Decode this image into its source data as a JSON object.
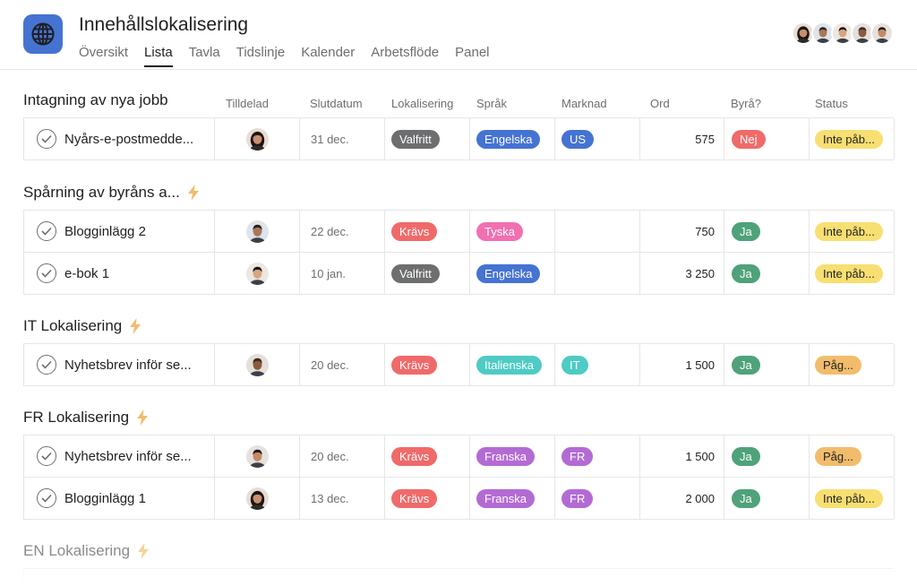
{
  "project": {
    "title": "Innehållslokalisering",
    "icon": "globe-icon",
    "icon_bg": "#4573d2"
  },
  "tabs": [
    {
      "label": "Översikt"
    },
    {
      "label": "Lista",
      "active": true
    },
    {
      "label": "Tavla"
    },
    {
      "label": "Tidslinje"
    },
    {
      "label": "Kalender"
    },
    {
      "label": "Arbetsflöde"
    },
    {
      "label": "Panel"
    }
  ],
  "columns": {
    "assignee": "Tilldelad",
    "due": "Slutdatum",
    "localization": "Lokalisering",
    "language": "Språk",
    "market": "Marknad",
    "words": "Ord",
    "agency": "Byrå?",
    "status": "Status"
  },
  "sections": [
    {
      "title": "Intagning av nya jobb",
      "rule_icon": false,
      "rows": [
        {
          "name": "Nyårs-e-postmedde...",
          "assignee": "person-avatar",
          "due": "31 dec.",
          "localization": "Valfritt",
          "language": "Engelska",
          "market": "US",
          "words": "575",
          "agency": "Nej",
          "status": "Inte påb..."
        }
      ]
    },
    {
      "title": "Spårning av byråns a...",
      "rule_icon": true,
      "rows": [
        {
          "name": "Blogginlägg 2",
          "assignee": "person-avatar",
          "due": "22 dec.",
          "localization": "Krävs",
          "language": "Tyska",
          "market": "",
          "words": "750",
          "agency": "Ja",
          "status": "Inte påb..."
        },
        {
          "name": "e-bok 1",
          "assignee": "person-avatar",
          "due": "10 jan.",
          "localization": "Valfritt",
          "language": "Engelska",
          "market": "",
          "words": "3 250",
          "agency": "Ja",
          "status": "Inte påb..."
        }
      ]
    },
    {
      "title": "IT Lokalisering",
      "rule_icon": true,
      "rows": [
        {
          "name": "Nyhetsbrev inför se...",
          "assignee": "person-avatar",
          "due": "20 dec.",
          "localization": "Krävs",
          "language": "Italienska",
          "market": "IT",
          "words": "1 500",
          "agency": "Ja",
          "status": "Påg..."
        }
      ]
    },
    {
      "title": "FR Lokalisering",
      "rule_icon": true,
      "rows": [
        {
          "name": "Nyhetsbrev inför se...",
          "assignee": "person-avatar",
          "due": "20 dec.",
          "localization": "Krävs",
          "language": "Franska",
          "market": "FR",
          "words": "1 500",
          "agency": "Ja",
          "status": "Påg..."
        },
        {
          "name": "Blogginlägg 1",
          "assignee": "person-avatar",
          "due": "13 dec.",
          "localization": "Krävs",
          "language": "Franska",
          "market": "FR",
          "words": "2 000",
          "agency": "Ja",
          "status": "Inte påb..."
        }
      ]
    },
    {
      "title": "EN Lokalisering",
      "rule_icon": true,
      "rows": []
    }
  ],
  "colors": {
    "Valfritt": "#6d6e6f",
    "Krävs": "#f06a6a",
    "Engelska": "#4573d2",
    "Tyska": "#f26fb2",
    "Italienska": "#4ecbc4",
    "Franska": "#b36bd4",
    "US": "#4573d2",
    "IT": "#4ecbc4",
    "FR": "#b36bd4",
    "Nej": "#f06a6a",
    "Ja": "#4fa27a",
    "Inte påb...": "#f8df72",
    "Påg...": "#f1bd6c"
  }
}
